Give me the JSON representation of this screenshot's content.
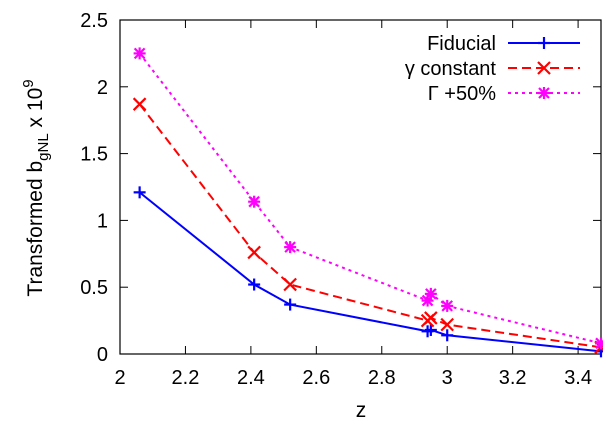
{
  "chart_data": {
    "type": "line",
    "title": "",
    "xlabel": "z",
    "ylabel": {
      "base": "Transformed b",
      "subscript": "gNL",
      "suffix": " x 10",
      "superscript": "9"
    },
    "xlim": [
      2,
      3.47
    ],
    "ylim": [
      0,
      2.5
    ],
    "x_ticks": [
      "2",
      "2.2",
      "2.4",
      "2.6",
      "2.8",
      "3",
      "3.2",
      "3.4"
    ],
    "x_tick_values": [
      2,
      2.2,
      2.4,
      2.6,
      2.8,
      3.0,
      3.2,
      3.4
    ],
    "y_ticks": [
      "0",
      "0.5",
      "1",
      "1.5",
      "2",
      "2.5"
    ],
    "y_tick_values": [
      0,
      0.5,
      1,
      1.5,
      2,
      2.5
    ],
    "grid": false,
    "legend_position": "top-right",
    "series": [
      {
        "name": "Fiducial",
        "color": "#0000ff",
        "line_style": "solid",
        "marker": "plus",
        "x": [
          2.06,
          2.41,
          2.52,
          2.94,
          2.95,
          3.0,
          3.47
        ],
        "y": [
          1.21,
          0.52,
          0.37,
          0.17,
          0.18,
          0.14,
          0.02
        ]
      },
      {
        "name": "γ constant",
        "color": "#ff0000",
        "line_style": "dashed",
        "marker": "x",
        "x": [
          2.06,
          2.41,
          2.52,
          2.94,
          2.95,
          3.0,
          3.47
        ],
        "y": [
          1.87,
          0.76,
          0.52,
          0.25,
          0.27,
          0.22,
          0.05
        ]
      },
      {
        "name": "Γ +50%",
        "color": "#ff00ff",
        "line_style": "dotted",
        "marker": "asterisk",
        "x": [
          2.06,
          2.41,
          2.52,
          2.94,
          2.95,
          3.0,
          3.47
        ],
        "y": [
          2.25,
          1.14,
          0.8,
          0.4,
          0.45,
          0.36,
          0.08
        ]
      }
    ]
  }
}
